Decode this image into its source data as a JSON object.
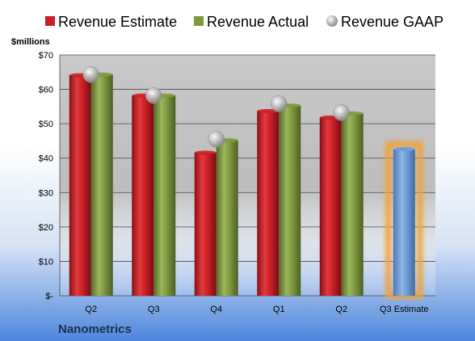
{
  "chart_data": {
    "type": "bar",
    "ylabel": "$millions",
    "ylim": [
      0,
      70
    ],
    "ytick_step": 10,
    "ytick_labels": [
      "$-",
      "$10",
      "$20",
      "$30",
      "$40",
      "$50",
      "$60",
      "$70"
    ],
    "categories": [
      "Q2",
      "Q3",
      "Q4",
      "Q1",
      "Q2",
      "Q3 Estimate"
    ],
    "series": [
      {
        "name": "Revenue Estimate",
        "kind": "bar",
        "color": "#cc1f25",
        "values": [
          64.1,
          58.2,
          41.6,
          53.7,
          51.8,
          null
        ]
      },
      {
        "name": "Revenue Actual",
        "kind": "bar",
        "color": "#7f9a3a",
        "values": [
          64.3,
          58.2,
          45.2,
          55.3,
          53.0,
          null
        ]
      },
      {
        "name": "Revenue GAAP",
        "kind": "marker",
        "color": "#b8b8b8",
        "values": [
          64.3,
          58.2,
          45.5,
          55.8,
          53.2,
          null
        ]
      }
    ],
    "highlight": {
      "category_index": 5,
      "value": 42.6,
      "color": "#6f9fd8",
      "glow": "#f5a030"
    },
    "grid": true,
    "legend_position": "top"
  },
  "footer": {
    "company": "Nanometrics"
  }
}
